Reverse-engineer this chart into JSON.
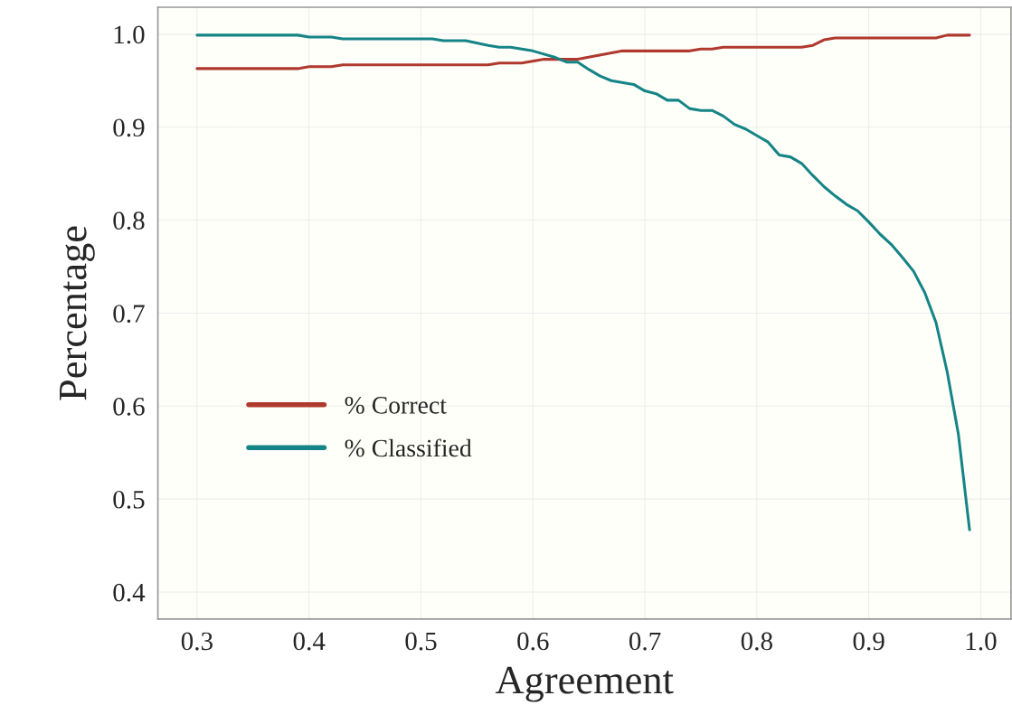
{
  "chart_data": {
    "type": "line",
    "xlabel": "Agreement",
    "ylabel": "Percentage",
    "xlim": [
      0.265,
      1.027
    ],
    "ylim": [
      0.371,
      1.029
    ],
    "xticks": [
      0.3,
      0.4,
      0.5,
      0.6,
      0.7,
      0.8,
      0.9,
      {
        "value": 1.0,
        "label": "1.0"
      }
    ],
    "yticks": [
      0.4,
      0.5,
      0.6,
      0.7,
      0.8,
      0.9,
      {
        "value": 1.0,
        "label": "1.0"
      }
    ],
    "grid": true,
    "legend": "bottom left",
    "marker": "none",
    "line_style": "solid",
    "series": [
      {
        "name": "% Correct",
        "color": "#b0392e",
        "x": [
          0.3,
          0.39,
          0.4,
          0.42,
          0.43,
          0.56,
          0.57,
          0.59,
          0.61,
          0.64,
          0.68,
          0.74,
          0.75,
          0.76,
          0.77,
          0.84,
          0.85,
          0.86,
          0.87,
          0.96,
          0.97,
          0.99
        ],
        "values": [
          0.963,
          0.963,
          0.965,
          0.965,
          0.967,
          0.967,
          0.969,
          0.969,
          0.973,
          0.973,
          0.982,
          0.982,
          0.984,
          0.984,
          0.986,
          0.986,
          0.988,
          0.994,
          0.996,
          0.996,
          0.999,
          0.999
        ]
      },
      {
        "name": "% Classified",
        "color": "#158486",
        "x": [
          0.3,
          0.39,
          0.4,
          0.42,
          0.43,
          0.51,
          0.52,
          0.54,
          0.56,
          0.57,
          0.58,
          0.6,
          0.62,
          0.63,
          0.64,
          0.65,
          0.66,
          0.67,
          0.69,
          0.7,
          0.71,
          0.72,
          0.73,
          0.74,
          0.75,
          0.76,
          0.77,
          0.78,
          0.79,
          0.8,
          0.81,
          0.82,
          0.83,
          0.84,
          0.85,
          0.86,
          0.87,
          0.88,
          0.89,
          0.9,
          0.91,
          0.92,
          0.93,
          0.94,
          0.95,
          0.96,
          0.97,
          0.98,
          0.99
        ],
        "values": [
          0.999,
          0.999,
          0.997,
          0.997,
          0.995,
          0.995,
          0.993,
          0.993,
          0.988,
          0.986,
          0.986,
          0.982,
          0.975,
          0.97,
          0.97,
          0.962,
          0.955,
          0.95,
          0.946,
          0.939,
          0.936,
          0.929,
          0.929,
          0.92,
          0.918,
          0.918,
          0.912,
          0.903,
          0.898,
          0.891,
          0.884,
          0.87,
          0.868,
          0.861,
          0.848,
          0.836,
          0.826,
          0.817,
          0.81,
          0.798,
          0.785,
          0.774,
          0.76,
          0.745,
          0.722,
          0.69,
          0.637,
          0.57,
          0.467
        ]
      }
    ]
  }
}
